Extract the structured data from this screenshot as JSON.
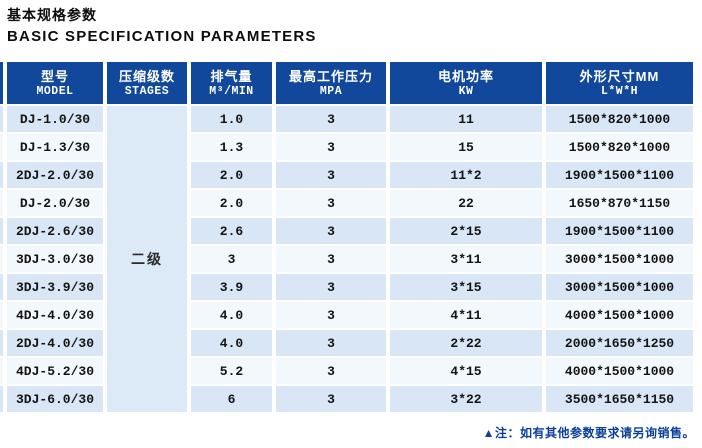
{
  "page": {
    "title_cn": "基本规格参数",
    "title_en": "BASIC SPECIFICATION PARAMETERS",
    "note": "▲注：如有其他参数要求请另询销售。"
  },
  "table": {
    "columns": [
      {
        "cn": "型号",
        "en": "MODEL"
      },
      {
        "cn": "压缩级数",
        "en": "STAGES"
      },
      {
        "cn": "排气量",
        "en": "M³/MIN"
      },
      {
        "cn": "最高工作压力",
        "en": "MPA"
      },
      {
        "cn": "电机功率",
        "en": "KW"
      },
      {
        "cn": "外形尺寸MM",
        "en": "L*W*H"
      }
    ],
    "stages_merged": "二级",
    "rows": [
      {
        "model": "DJ-1.0/30",
        "displacement": "1.0",
        "pressure": "3",
        "power": "11",
        "dimensions": "1500*820*1000"
      },
      {
        "model": "DJ-1.3/30",
        "displacement": "1.3",
        "pressure": "3",
        "power": "15",
        "dimensions": "1500*820*1000"
      },
      {
        "model": "2DJ-2.0/30",
        "displacement": "2.0",
        "pressure": "3",
        "power": "11*2",
        "dimensions": "1900*1500*1100"
      },
      {
        "model": "DJ-2.0/30",
        "displacement": "2.0",
        "pressure": "3",
        "power": "22",
        "dimensions": "1650*870*1150"
      },
      {
        "model": "2DJ-2.6/30",
        "displacement": "2.6",
        "pressure": "3",
        "power": "2*15",
        "dimensions": "1900*1500*1100"
      },
      {
        "model": "3DJ-3.0/30",
        "displacement": "3",
        "pressure": "3",
        "power": "3*11",
        "dimensions": "3000*1500*1000"
      },
      {
        "model": "3DJ-3.9/30",
        "displacement": "3.9",
        "pressure": "3",
        "power": "3*15",
        "dimensions": "3000*1500*1000"
      },
      {
        "model": "4DJ-4.0/30",
        "displacement": "4.0",
        "pressure": "3",
        "power": "4*11",
        "dimensions": "4000*1500*1000"
      },
      {
        "model": "2DJ-4.0/30",
        "displacement": "4.0",
        "pressure": "3",
        "power": "2*22",
        "dimensions": "2000*1650*1250"
      },
      {
        "model": "4DJ-5.2/30",
        "displacement": "5.2",
        "pressure": "3",
        "power": "4*15",
        "dimensions": "4000*1500*1000"
      },
      {
        "model": "3DJ-6.0/30",
        "displacement": "6",
        "pressure": "3",
        "power": "3*22",
        "dimensions": "3500*1650*1150"
      }
    ],
    "colors": {
      "header_bg": "#12489c",
      "row_odd": "#d8e6f5",
      "row_even": "#f3f8fd",
      "stages_bg": "#dce9f7",
      "note_color": "#0b3f9a"
    }
  }
}
